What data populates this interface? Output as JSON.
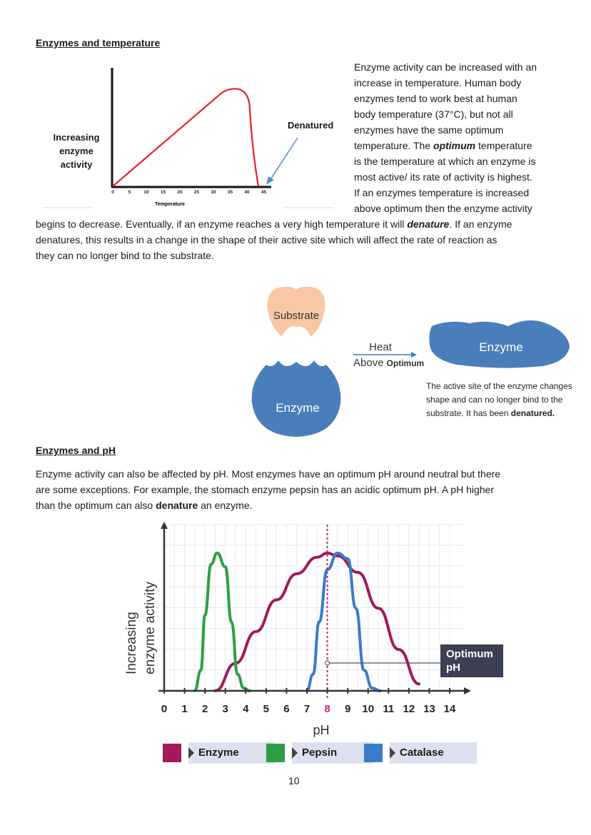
{
  "section1": {
    "heading": "Enzymes and temperature",
    "intro_lines": [
      "Enzyme activity can be increased with an",
      "increase in temperature. Human body",
      "enzymes tend to work best at human",
      "body temperature (37°C), but not all",
      "enzymes have the same optimum"
    ],
    "line6_pre": "temperature. The ",
    "line6_bold": "optimum",
    "line6_post": " temperature",
    "more_lines": [
      "is the temperature at which an enzyme is",
      "most active/ its rate of activity is highest.",
      "If an enzymes temperature is increased",
      "above optimum then the enzyme activity"
    ],
    "full_line1_pre": "begins to decrease. Eventually, if an enzyme reaches a very high temperature it will ",
    "full_line1_bold": "denature",
    "full_line1_post": ". If an enzyme",
    "full_line2": "denatures, this results in a change in the shape of their active site which will affect the rate of reaction as",
    "full_line3": "they can no longer bind to the substrate."
  },
  "temp_chart": {
    "ylabel_lines": [
      "Increasing",
      "enzyme",
      "activity"
    ],
    "xlabel": "Temperature",
    "ticks": [
      "0",
      "5",
      "10",
      "15",
      "20",
      "25",
      "30",
      "35",
      "40",
      "45"
    ],
    "annotation": "Denatured",
    "line_color": "#e8202a",
    "arrow_color": "#5b8fd0"
  },
  "diagram": {
    "substrate_label": "Substrate",
    "enzyme_label": "Enzyme",
    "heat_label": "Heat",
    "above_label": "Above",
    "optimum_label": "Optimum",
    "denatured_enzyme_label": "Enzyme",
    "caption_line1": "The active site of the enzyme changes",
    "caption_line2": "shape and can no longer bind to the",
    "caption_line3_pre": "substrate.  It has been ",
    "caption_line3_bold": "denatured.",
    "substrate_color": "#f8c8a4",
    "enzyme_color": "#4a7ebb"
  },
  "section2": {
    "heading": "Enzymes and pH",
    "line1": "Enzyme activity can also be affected by pH. Most enzymes have an optimum pH around neutral but there",
    "line2": "are some exceptions. For example, the stomach enzyme pepsin has an acidic optimum pH. A pH higher",
    "line3_pre": "than the optimum can also ",
    "line3_bold": "denature",
    "line3_post": " an enzyme."
  },
  "chart_data": {
    "type": "line",
    "x": [
      0,
      1,
      2,
      3,
      4,
      5,
      6,
      7,
      8,
      9,
      10,
      11,
      12,
      13,
      14
    ],
    "xtick_labels": [
      "0",
      "1",
      "2",
      "3",
      "4",
      "5",
      "6",
      "7",
      "8",
      "9",
      "10",
      "11",
      "12",
      "13",
      "14"
    ],
    "highlight_tick": "8",
    "xlabel": "pH",
    "ylabel_lines": [
      "Increasing",
      "enzyme activity"
    ],
    "xlim": [
      0,
      14
    ],
    "ylim": [
      0,
      1
    ],
    "grid": true,
    "series": [
      {
        "name": "Enzyme",
        "color": "#a3195b",
        "x": [
          2.5,
          3.5,
          4.5,
          5.5,
          6.5,
          7.5,
          8,
          8.5,
          9.5,
          10.5,
          11.5,
          12.5
        ],
        "y": [
          0,
          0.2,
          0.43,
          0.66,
          0.85,
          0.97,
          1.0,
          0.98,
          0.86,
          0.6,
          0.3,
          0.05
        ]
      },
      {
        "name": "Pepsin",
        "color": "#2e9e46",
        "x": [
          1.5,
          1.8,
          2.0,
          2.3,
          2.6,
          3.0,
          3.3,
          3.6,
          3.9,
          4.2
        ],
        "y": [
          0,
          0.15,
          0.55,
          0.92,
          1.0,
          0.9,
          0.5,
          0.12,
          0.02,
          0
        ]
      },
      {
        "name": "Catalase",
        "color": "#3a7cc8",
        "x": [
          7.0,
          7.3,
          7.6,
          8.0,
          8.5,
          9.0,
          9.4,
          9.8,
          10.2,
          10.6
        ],
        "y": [
          0,
          0.12,
          0.5,
          0.88,
          1.0,
          0.96,
          0.6,
          0.15,
          0.02,
          0
        ]
      }
    ],
    "annotation": {
      "label_line1": "Optimum",
      "label_line2": "pH",
      "x": 8
    }
  },
  "legend": [
    {
      "label": "Enzyme",
      "color": "#a3195b"
    },
    {
      "label": "Pepsin",
      "color": "#2e9e46"
    },
    {
      "label": "Catalase",
      "color": "#3a7cc8"
    }
  ],
  "page_number": "10"
}
